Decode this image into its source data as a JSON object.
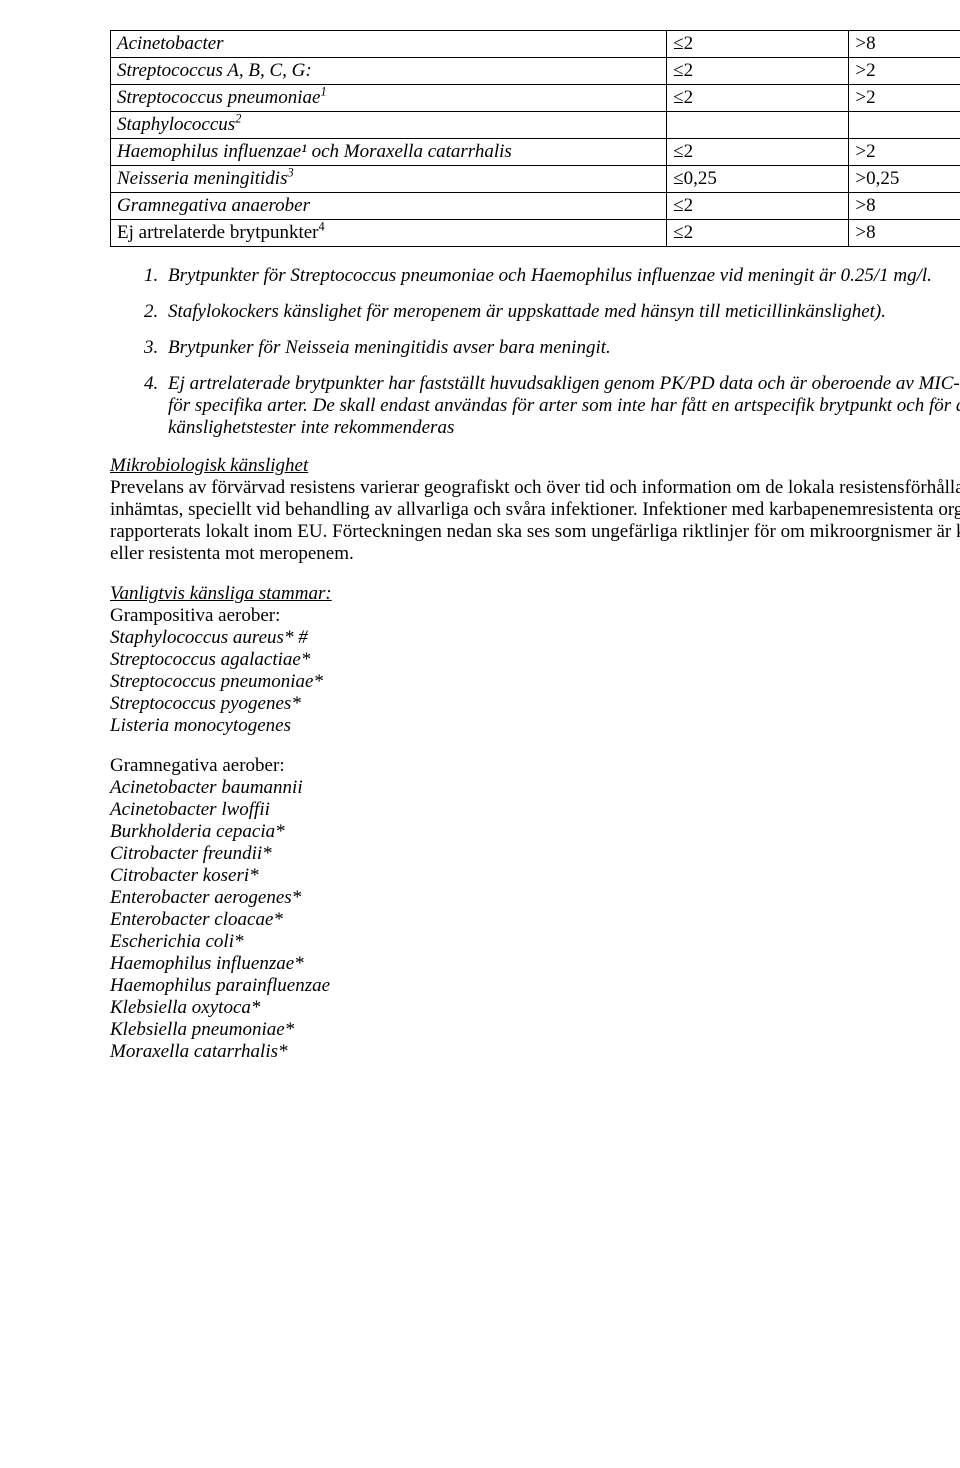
{
  "table": {
    "rows": [
      {
        "name": "Acinetobacter",
        "name_italic": true,
        "sup": "",
        "v1": "≤2",
        "v2": ">8"
      },
      {
        "name": "Streptococcus A, B, C, G:",
        "name_italic": true,
        "sup": "",
        "v1": "≤2",
        "v2": ">2"
      },
      {
        "name": "Streptococcus pneumoniae",
        "name_italic": true,
        "sup": "1",
        "v1": "≤2",
        "v2": ">2"
      },
      {
        "name": "Staphylococcus",
        "name_italic": true,
        "sup": "2",
        "v1": "",
        "v2": ""
      },
      {
        "name": "Haemophilus influenzae¹ och Moraxella catarrhalis",
        "name_italic": true,
        "sup": "",
        "v1": "≤2",
        "v2": ">2"
      },
      {
        "name": "Neisseria meningitidis",
        "name_italic": true,
        "sup": "3",
        "v1": "≤0,25",
        "v2": ">0,25"
      },
      {
        "name": "Gramnegativa anaerober",
        "name_italic": true,
        "sup": "",
        "v1": "≤2",
        "v2": ">8"
      },
      {
        "name": "Ej artrelaterde brytpunkter",
        "name_italic": false,
        "sup": "4",
        "v1": "≤2",
        "v2": ">8"
      }
    ]
  },
  "notes": {
    "n1": "Brytpunkter för Streptococcus pneumoniae och Haemophilus influenzae vid meningit är 0.25/1 mg/l.",
    "n2": "Stafylokockers känslighet för meropenem är uppskattade med hänsyn till meticillinkänslighet).",
    "n3": "Brytpunker för Neisseia meningitidis avser bara meningit.",
    "n4": "Ej artrelaterade brytpunkter har fastställt huvudsakligen genom PK/PD data och är oberoende av MIC-fördelningen för specifika arter. De skall endast användas för arter som inte har fått en artspecifik brytpunkt och för de arter där känslighetstester inte rekommenderas"
  },
  "micro": {
    "title": "Mikrobiologisk känslighet",
    "body": "Prevelans av förvärvad resistens varierar geografiskt och över tid och information om de lokala resistensförhållandena bör inhämtas, speciellt vid behandling av allvarliga och svåra infektioner. Infektioner med karbapenemresistenta organismer har rapporterats lokalt inom EU. Förteckningen nedan ska ses som ungefärliga riktlinjer för om mikroorgnismer är känsliga för eller resistenta mot meropenem."
  },
  "groups": {
    "usually_sensitive_title": "Vanligtvis känsliga stammar:",
    "gram_pos_head": "Grampositiva aerober:",
    "gram_pos": [
      "Staphylococcus aureus* #",
      "Streptococcus agalactiae*",
      "Streptococcus pneumoniae*",
      "Streptococcus pyogenes*",
      "Listeria monocytogenes"
    ],
    "gram_neg_head": "Gramnegativa aerober:",
    "gram_neg": [
      "Acinetobacter baumannii",
      "Acinetobacter lwoffii",
      "Burkholderia cepacia*",
      "Citrobacter freundii*",
      "Citrobacter koseri*",
      "Enterobacter aerogenes*",
      "Enterobacter cloacae*",
      "Escherichia coli*",
      "Haemophilus influenzae*",
      "Haemophilus parainfluenzae",
      "Klebsiella oxytoca*",
      "Klebsiella pneumoniae*",
      "Moraxella catarrhalis*"
    ]
  }
}
